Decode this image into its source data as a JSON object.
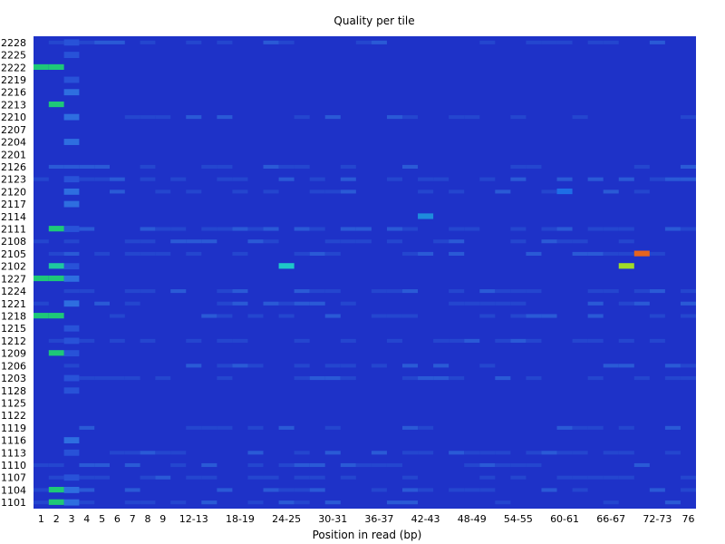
{
  "chart_data": {
    "type": "heatmap",
    "title": "Quality per tile",
    "xlabel": "Position in read (bp)",
    "ylabel": "",
    "x_tick_labels": [
      "1",
      "2",
      "3",
      "4",
      "5",
      "6",
      "7",
      "8",
      "9",
      "12-13",
      "18-19",
      "24-25",
      "30-31",
      "36-37",
      "42-43",
      "48-49",
      "54-55",
      "60-61",
      "66-67",
      "72-73",
      "76"
    ],
    "y_tick_labels": [
      "2228",
      "2225",
      "2222",
      "2219",
      "2216",
      "2213",
      "2210",
      "2207",
      "2204",
      "2201",
      "2126",
      "2123",
      "2120",
      "2117",
      "2114",
      "2111",
      "2108",
      "2105",
      "2102",
      "1227",
      "1224",
      "1221",
      "1218",
      "1215",
      "1212",
      "1209",
      "1206",
      "1203",
      "1128",
      "1125",
      "1122",
      "1119",
      "1116",
      "1113",
      "1110",
      "1107",
      "1104",
      "1101"
    ],
    "x_bins": [
      "1",
      "2",
      "3",
      "4",
      "5",
      "6",
      "7",
      "8",
      "9",
      "10-11",
      "12-13",
      "14-15",
      "16-17",
      "18-19",
      "20-21",
      "22-23",
      "24-25",
      "26-27",
      "28-29",
      "30-31",
      "32-33",
      "34-35",
      "36-37",
      "38-39",
      "40-41",
      "42-43",
      "44-45",
      "46-47",
      "48-49",
      "50-51",
      "52-53",
      "54-55",
      "56-57",
      "58-59",
      "60-61",
      "62-63",
      "64-65",
      "66-67",
      "68-69",
      "70-71",
      "72-73",
      "74-75",
      "76"
    ],
    "baseline_color": "#1e32c8",
    "highlights": [
      {
        "tile": "2222",
        "positions": [
          "1",
          "2"
        ],
        "color": "#1ec878"
      },
      {
        "tile": "2213",
        "positions": [
          "2"
        ],
        "color": "#1ec878"
      },
      {
        "tile": "2111",
        "positions": [
          "2"
        ],
        "color": "#1ec878"
      },
      {
        "tile": "2102",
        "positions": [
          "2"
        ],
        "color": "#1ec8a0"
      },
      {
        "tile": "1227",
        "positions": [
          "1",
          "2"
        ],
        "color": "#1ec878"
      },
      {
        "tile": "1218",
        "positions": [
          "1",
          "2"
        ],
        "color": "#1ec878"
      },
      {
        "tile": "1209",
        "positions": [
          "2"
        ],
        "color": "#1ec878"
      },
      {
        "tile": "1104",
        "positions": [
          "2"
        ],
        "color": "#1ec878"
      },
      {
        "tile": "1101",
        "positions": [
          "2"
        ],
        "color": "#1ec878"
      },
      {
        "tile": "2102",
        "positions": [
          "24-25"
        ],
        "color": "#1ec8c8"
      },
      {
        "tile": "2114",
        "positions": [
          "42-43"
        ],
        "color": "#1e8cdc"
      },
      {
        "tile": "2120",
        "positions": [
          "60-61"
        ],
        "color": "#1e6ee6"
      },
      {
        "tile": "2105",
        "positions": [
          "70-71"
        ],
        "color": "#e6641e"
      },
      {
        "tile": "2102",
        "positions": [
          "68-69"
        ],
        "color": "#a0dc28"
      }
    ],
    "grid": false,
    "legend": "none"
  }
}
